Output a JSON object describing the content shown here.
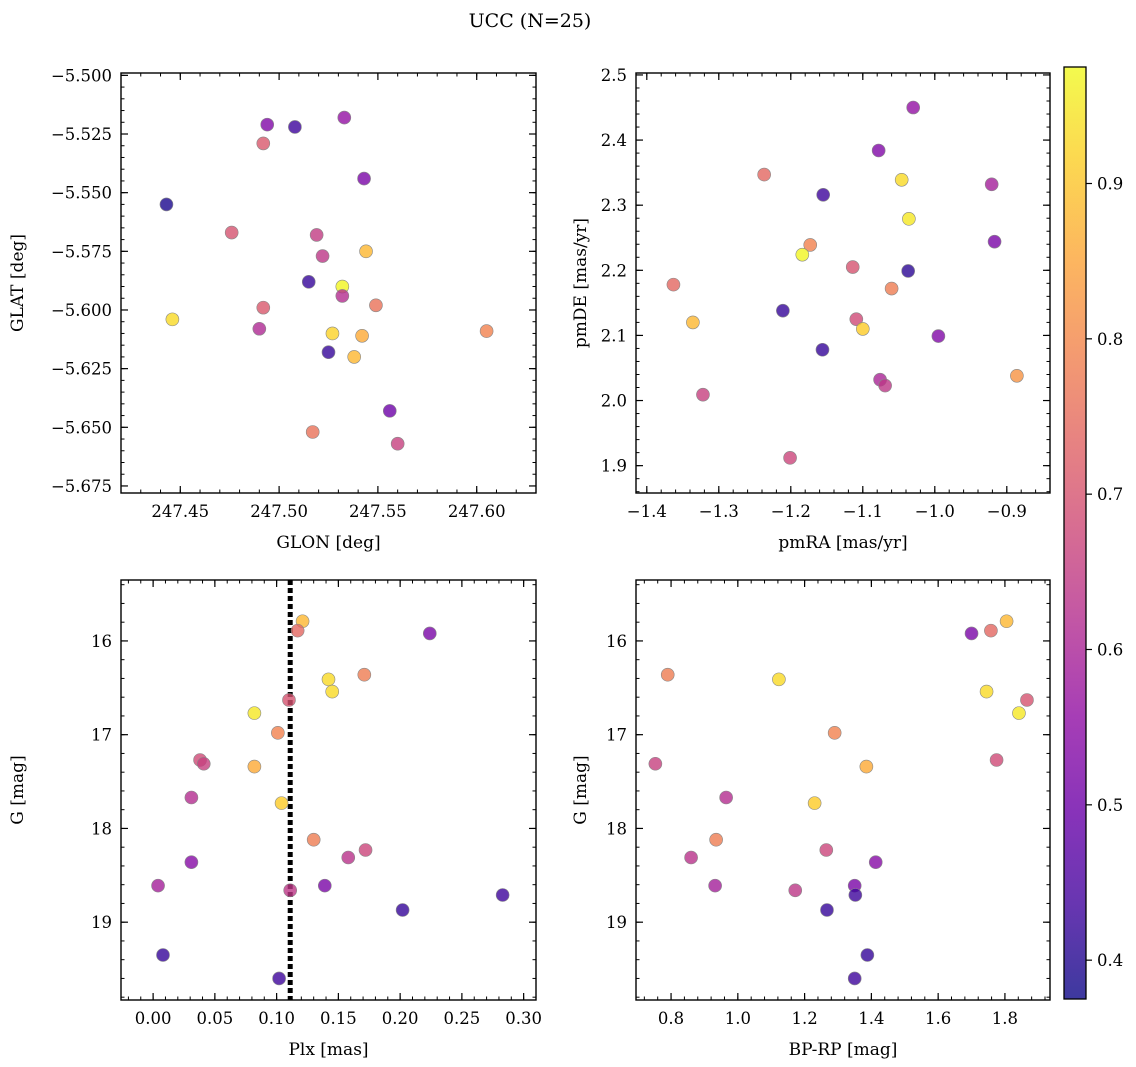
{
  "figure": {
    "title": "UCC (N=25)",
    "colorbar": {
      "range": [
        0.375,
        0.975
      ],
      "ticks": [
        0.4,
        0.5,
        0.6,
        0.7,
        0.8,
        0.9
      ],
      "tick_labels": [
        "0.4",
        "0.5",
        "0.6",
        "0.7",
        "0.8",
        "0.9"
      ],
      "colormap": "plasma",
      "alpha": 0.8
    }
  },
  "chart_data": [
    {
      "type": "scatter",
      "name": "glon-glat",
      "xlabel": "GLON [deg]",
      "ylabel": "GLAT [deg]",
      "xlim": [
        247.42,
        247.63
      ],
      "ylim": [
        -5.678,
        -5.499
      ],
      "xticks": [
        247.45,
        247.5,
        247.55,
        247.6
      ],
      "xtick_labels": [
        "247.45",
        "247.50",
        "247.55",
        "247.60"
      ],
      "yticks": [
        -5.5,
        -5.525,
        -5.55,
        -5.575,
        -5.6,
        -5.625,
        -5.65,
        -5.675
      ],
      "ytick_labels": [
        "−5.500",
        "−5.525",
        "−5.550",
        "−5.575",
        "−5.600",
        "−5.625",
        "−5.650",
        "−5.675"
      ],
      "yinvert": false,
      "points": [
        {
          "x": 247.494,
          "y": -5.521,
          "c": 0.53
        },
        {
          "x": 247.508,
          "y": -5.522,
          "c": 0.43
        },
        {
          "x": 247.533,
          "y": -5.518,
          "c": 0.56
        },
        {
          "x": 247.492,
          "y": -5.529,
          "c": 0.71
        },
        {
          "x": 247.543,
          "y": -5.544,
          "c": 0.52
        },
        {
          "x": 247.443,
          "y": -5.555,
          "c": 0.39
        },
        {
          "x": 247.476,
          "y": -5.567,
          "c": 0.7
        },
        {
          "x": 247.519,
          "y": -5.568,
          "c": 0.65
        },
        {
          "x": 247.522,
          "y": -5.577,
          "c": 0.64
        },
        {
          "x": 247.544,
          "y": -5.575,
          "c": 0.88
        },
        {
          "x": 247.515,
          "y": -5.588,
          "c": 0.42
        },
        {
          "x": 247.532,
          "y": -5.59,
          "c": 0.97
        },
        {
          "x": 247.532,
          "y": -5.594,
          "c": 0.62
        },
        {
          "x": 247.492,
          "y": -5.599,
          "c": 0.71
        },
        {
          "x": 247.549,
          "y": -5.598,
          "c": 0.76
        },
        {
          "x": 247.446,
          "y": -5.604,
          "c": 0.93
        },
        {
          "x": 247.49,
          "y": -5.608,
          "c": 0.61
        },
        {
          "x": 247.527,
          "y": -5.61,
          "c": 0.92
        },
        {
          "x": 247.542,
          "y": -5.611,
          "c": 0.86
        },
        {
          "x": 247.605,
          "y": -5.609,
          "c": 0.79
        },
        {
          "x": 247.525,
          "y": -5.618,
          "c": 0.42
        },
        {
          "x": 247.538,
          "y": -5.62,
          "c": 0.88
        },
        {
          "x": 247.556,
          "y": -5.643,
          "c": 0.5
        },
        {
          "x": 247.517,
          "y": -5.652,
          "c": 0.76
        },
        {
          "x": 247.56,
          "y": -5.657,
          "c": 0.66
        }
      ]
    },
    {
      "type": "scatter",
      "name": "pmra-pmde",
      "xlabel": "pmRA [mas/yr]",
      "ylabel": "pmDE [mas/yr]",
      "xlim": [
        -1.415,
        -0.84
      ],
      "ylim": [
        1.858,
        2.503
      ],
      "xticks": [
        -1.4,
        -1.3,
        -1.2,
        -1.1,
        -1.0,
        -0.9
      ],
      "xtick_labels": [
        "−1.4",
        "−1.3",
        "−1.2",
        "−1.1",
        "−1.0",
        "−0.9"
      ],
      "yticks": [
        1.9,
        2.0,
        2.1,
        2.2,
        2.3,
        2.4,
        2.5
      ],
      "ytick_labels": [
        "1.9",
        "2.0",
        "2.1",
        "2.2",
        "2.3",
        "2.4",
        "2.5"
      ],
      "yinvert": false,
      "points": [
        {
          "x": -1.03,
          "y": 2.45,
          "c": 0.56
        },
        {
          "x": -1.078,
          "y": 2.384,
          "c": 0.53
        },
        {
          "x": -1.237,
          "y": 2.347,
          "c": 0.74
        },
        {
          "x": -1.046,
          "y": 2.339,
          "c": 0.93
        },
        {
          "x": -0.921,
          "y": 2.332,
          "c": 0.59
        },
        {
          "x": -1.155,
          "y": 2.316,
          "c": 0.43
        },
        {
          "x": -1.036,
          "y": 2.279,
          "c": 0.95
        },
        {
          "x": -0.917,
          "y": 2.244,
          "c": 0.52
        },
        {
          "x": -1.173,
          "y": 2.239,
          "c": 0.79
        },
        {
          "x": -1.184,
          "y": 2.224,
          "c": 0.97
        },
        {
          "x": -1.114,
          "y": 2.205,
          "c": 0.7
        },
        {
          "x": -1.037,
          "y": 2.199,
          "c": 0.41
        },
        {
          "x": -1.363,
          "y": 2.178,
          "c": 0.74
        },
        {
          "x": -1.06,
          "y": 2.172,
          "c": 0.78
        },
        {
          "x": -1.211,
          "y": 2.138,
          "c": 0.42
        },
        {
          "x": -1.109,
          "y": 2.125,
          "c": 0.68
        },
        {
          "x": -1.336,
          "y": 2.12,
          "c": 0.88
        },
        {
          "x": -1.1,
          "y": 2.11,
          "c": 0.91
        },
        {
          "x": -0.995,
          "y": 2.099,
          "c": 0.53
        },
        {
          "x": -1.156,
          "y": 2.078,
          "c": 0.42
        },
        {
          "x": -1.076,
          "y": 2.032,
          "c": 0.6
        },
        {
          "x": -1.069,
          "y": 2.023,
          "c": 0.64
        },
        {
          "x": -0.886,
          "y": 2.038,
          "c": 0.82
        },
        {
          "x": -1.322,
          "y": 2.009,
          "c": 0.66
        },
        {
          "x": -1.201,
          "y": 1.912,
          "c": 0.67
        }
      ]
    },
    {
      "type": "scatter",
      "name": "plx-g",
      "xlabel": "Plx [mas]",
      "ylabel": "G [mag]",
      "xlim": [
        -0.026,
        0.31
      ],
      "ylim": [
        15.35,
        19.83
      ],
      "xticks": [
        0.0,
        0.05,
        0.1,
        0.15,
        0.2,
        0.25,
        0.3
      ],
      "xtick_labels": [
        "0.00",
        "0.05",
        "0.10",
        "0.15",
        "0.20",
        "0.25",
        "0.30"
      ],
      "yticks": [
        16,
        17,
        18,
        19
      ],
      "ytick_labels": [
        "16",
        "17",
        "18",
        "19"
      ],
      "yinvert": true,
      "vline": {
        "x": 0.111,
        "style": "dotted"
      },
      "points": [
        {
          "x": 0.121,
          "y": 15.79,
          "c": 0.88
        },
        {
          "x": 0.117,
          "y": 15.89,
          "c": 0.74
        },
        {
          "x": 0.224,
          "y": 15.92,
          "c": 0.52
        },
        {
          "x": 0.171,
          "y": 16.36,
          "c": 0.78
        },
        {
          "x": 0.142,
          "y": 16.41,
          "c": 0.93
        },
        {
          "x": 0.145,
          "y": 16.54,
          "c": 0.93
        },
        {
          "x": 0.11,
          "y": 16.63,
          "c": 0.7
        },
        {
          "x": 0.082,
          "y": 16.77,
          "c": 0.95
        },
        {
          "x": 0.101,
          "y": 16.98,
          "c": 0.79
        },
        {
          "x": 0.038,
          "y": 17.27,
          "c": 0.68
        },
        {
          "x": 0.041,
          "y": 17.31,
          "c": 0.66
        },
        {
          "x": 0.082,
          "y": 17.34,
          "c": 0.86
        },
        {
          "x": 0.031,
          "y": 17.67,
          "c": 0.62
        },
        {
          "x": 0.104,
          "y": 17.73,
          "c": 0.91
        },
        {
          "x": 0.13,
          "y": 18.12,
          "c": 0.78
        },
        {
          "x": 0.172,
          "y": 18.23,
          "c": 0.67
        },
        {
          "x": 0.158,
          "y": 18.31,
          "c": 0.63
        },
        {
          "x": 0.031,
          "y": 18.36,
          "c": 0.54
        },
        {
          "x": 0.004,
          "y": 18.61,
          "c": 0.59
        },
        {
          "x": 0.139,
          "y": 18.61,
          "c": 0.52
        },
        {
          "x": 0.111,
          "y": 18.66,
          "c": 0.64
        },
        {
          "x": 0.283,
          "y": 18.71,
          "c": 0.43
        },
        {
          "x": 0.202,
          "y": 18.87,
          "c": 0.42
        },
        {
          "x": 0.008,
          "y": 19.35,
          "c": 0.42
        },
        {
          "x": 0.102,
          "y": 19.6,
          "c": 0.43
        }
      ]
    },
    {
      "type": "scatter",
      "name": "bprp-g",
      "xlabel": "BP-RP [mag]",
      "ylabel": "G [mag]",
      "xlim": [
        0.695,
        1.935
      ],
      "ylim": [
        15.35,
        19.83
      ],
      "xticks": [
        0.8,
        1.0,
        1.2,
        1.4,
        1.6,
        1.8
      ],
      "xtick_labels": [
        "0.8",
        "1.0",
        "1.2",
        "1.4",
        "1.6",
        "1.8"
      ],
      "yticks": [
        16,
        17,
        18,
        19
      ],
      "ytick_labels": [
        "16",
        "17",
        "18",
        "19"
      ],
      "yinvert": true,
      "points": [
        {
          "x": 1.805,
          "y": 15.79,
          "c": 0.88
        },
        {
          "x": 1.758,
          "y": 15.89,
          "c": 0.74
        },
        {
          "x": 1.7,
          "y": 15.92,
          "c": 0.52
        },
        {
          "x": 0.79,
          "y": 16.36,
          "c": 0.78
        },
        {
          "x": 1.123,
          "y": 16.41,
          "c": 0.93
        },
        {
          "x": 1.745,
          "y": 16.54,
          "c": 0.93
        },
        {
          "x": 1.866,
          "y": 16.63,
          "c": 0.7
        },
        {
          "x": 1.842,
          "y": 16.77,
          "c": 0.95
        },
        {
          "x": 1.29,
          "y": 16.98,
          "c": 0.79
        },
        {
          "x": 1.775,
          "y": 17.27,
          "c": 0.68
        },
        {
          "x": 0.753,
          "y": 17.31,
          "c": 0.66
        },
        {
          "x": 1.385,
          "y": 17.34,
          "c": 0.86
        },
        {
          "x": 0.965,
          "y": 17.67,
          "c": 0.62
        },
        {
          "x": 1.23,
          "y": 17.73,
          "c": 0.91
        },
        {
          "x": 0.935,
          "y": 18.12,
          "c": 0.78
        },
        {
          "x": 1.265,
          "y": 18.23,
          "c": 0.67
        },
        {
          "x": 0.86,
          "y": 18.31,
          "c": 0.63
        },
        {
          "x": 1.413,
          "y": 18.36,
          "c": 0.54
        },
        {
          "x": 0.932,
          "y": 18.61,
          "c": 0.59
        },
        {
          "x": 1.35,
          "y": 18.61,
          "c": 0.52
        },
        {
          "x": 1.172,
          "y": 18.66,
          "c": 0.64
        },
        {
          "x": 1.352,
          "y": 18.71,
          "c": 0.43
        },
        {
          "x": 1.267,
          "y": 18.87,
          "c": 0.42
        },
        {
          "x": 1.388,
          "y": 19.35,
          "c": 0.42
        },
        {
          "x": 1.35,
          "y": 19.6,
          "c": 0.43
        }
      ]
    }
  ]
}
